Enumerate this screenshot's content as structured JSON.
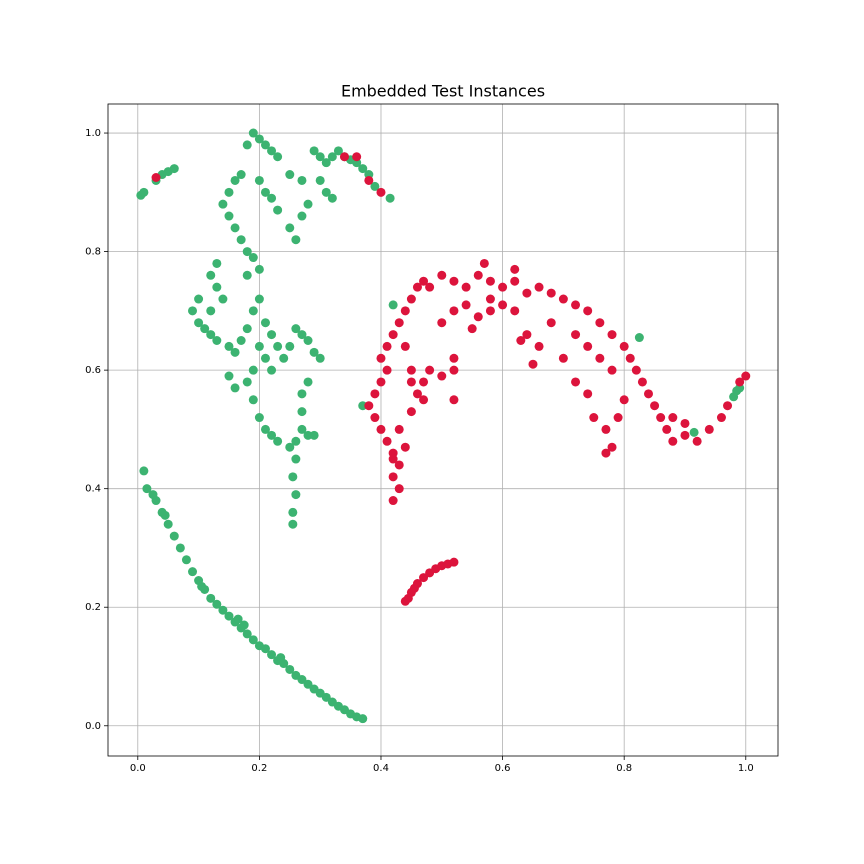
{
  "chart_data": {
    "type": "scatter",
    "title": "Embedded Test Instances",
    "grid": true,
    "xlim": [
      -0.049,
      1.053
    ],
    "ylim": [
      -0.051,
      1.049
    ],
    "xticks": [
      {
        "value": 0,
        "label": "0.0"
      },
      0.2,
      0.4,
      0.6,
      0.8,
      {
        "value": 1,
        "label": "1.0"
      }
    ],
    "yticks": [
      {
        "value": 0,
        "label": "0.0"
      },
      0.2,
      0.4,
      0.6,
      0.8,
      {
        "value": 1,
        "label": "1.0"
      }
    ],
    "series": [
      {
        "color": "#3cb371",
        "x": [
          0.01,
          0.015,
          0.03,
          0.04,
          0.05,
          0.06,
          0.07,
          0.08,
          0.09,
          0.1,
          0.11,
          0.12,
          0.13,
          0.14,
          0.15,
          0.16,
          0.17,
          0.18,
          0.19,
          0.2,
          0.21,
          0.22,
          0.23,
          0.24,
          0.25,
          0.26,
          0.27,
          0.28,
          0.29,
          0.3,
          0.31,
          0.32,
          0.33,
          0.34,
          0.35,
          0.36,
          0.37,
          0.025,
          0.045,
          0.105,
          0.165,
          0.175,
          0.235,
          0.005,
          0.01,
          0.03,
          0.04,
          0.05,
          0.06,
          0.18,
          0.19,
          0.2,
          0.21,
          0.22,
          0.23,
          0.25,
          0.27,
          0.29,
          0.3,
          0.31,
          0.32,
          0.33,
          0.34,
          0.35,
          0.36,
          0.37,
          0.38,
          0.39,
          0.415,
          0.3,
          0.31,
          0.32,
          0.28,
          0.27,
          0.25,
          0.26,
          0.23,
          0.22,
          0.21,
          0.2,
          0.17,
          0.16,
          0.15,
          0.14,
          0.15,
          0.16,
          0.17,
          0.18,
          0.19,
          0.2,
          0.18,
          0.13,
          0.12,
          0.13,
          0.14,
          0.12,
          0.1,
          0.09,
          0.1,
          0.11,
          0.12,
          0.13,
          0.15,
          0.16,
          0.17,
          0.18,
          0.19,
          0.2,
          0.21,
          0.22,
          0.2,
          0.21,
          0.22,
          0.24,
          0.25,
          0.26,
          0.27,
          0.28,
          0.29,
          0.3,
          0.23,
          0.19,
          0.18,
          0.16,
          0.15,
          0.19,
          0.2,
          0.21,
          0.22,
          0.23,
          0.25,
          0.26,
          0.27,
          0.28,
          0.29,
          0.26,
          0.255,
          0.26,
          0.255,
          0.255,
          0.27,
          0.27,
          0.28,
          0.37,
          0.42,
          0.915,
          0.98,
          0.985,
          0.99,
          0.825
        ],
        "y": [
          0.43,
          0.4,
          0.38,
          0.36,
          0.34,
          0.32,
          0.3,
          0.28,
          0.26,
          0.245,
          0.23,
          0.215,
          0.205,
          0.195,
          0.185,
          0.175,
          0.165,
          0.155,
          0.145,
          0.135,
          0.13,
          0.12,
          0.11,
          0.105,
          0.095,
          0.085,
          0.078,
          0.07,
          0.062,
          0.055,
          0.048,
          0.04,
          0.033,
          0.027,
          0.02,
          0.015,
          0.012,
          0.39,
          0.355,
          0.235,
          0.18,
          0.17,
          0.115,
          0.895,
          0.9,
          0.92,
          0.93,
          0.935,
          0.94,
          0.98,
          1.0,
          0.99,
          0.98,
          0.97,
          0.96,
          0.93,
          0.92,
          0.97,
          0.96,
          0.95,
          0.96,
          0.97,
          0.96,
          0.955,
          0.95,
          0.94,
          0.93,
          0.91,
          0.89,
          0.92,
          0.9,
          0.89,
          0.88,
          0.86,
          0.84,
          0.82,
          0.87,
          0.89,
          0.9,
          0.92,
          0.93,
          0.92,
          0.9,
          0.88,
          0.86,
          0.84,
          0.82,
          0.8,
          0.79,
          0.77,
          0.76,
          0.78,
          0.76,
          0.74,
          0.72,
          0.7,
          0.72,
          0.7,
          0.68,
          0.67,
          0.66,
          0.65,
          0.64,
          0.63,
          0.65,
          0.67,
          0.7,
          0.72,
          0.68,
          0.66,
          0.64,
          0.62,
          0.6,
          0.62,
          0.64,
          0.67,
          0.66,
          0.65,
          0.63,
          0.62,
          0.64,
          0.6,
          0.58,
          0.57,
          0.59,
          0.55,
          0.52,
          0.5,
          0.49,
          0.48,
          0.47,
          0.48,
          0.5,
          0.49,
          0.49,
          0.45,
          0.42,
          0.39,
          0.36,
          0.34,
          0.56,
          0.53,
          0.58,
          0.54,
          0.71,
          0.495,
          0.555,
          0.565,
          0.57,
          0.655
        ]
      },
      {
        "color": "#dc143c",
        "x": [
          0.44,
          0.445,
          0.45,
          0.455,
          0.46,
          0.47,
          0.48,
          0.49,
          0.5,
          0.51,
          0.52,
          0.34,
          0.36,
          0.38,
          0.4,
          0.03,
          0.42,
          0.43,
          0.42,
          0.43,
          0.42,
          0.41,
          0.4,
          0.39,
          0.38,
          0.39,
          0.4,
          0.41,
          0.4,
          0.41,
          0.42,
          0.43,
          0.44,
          0.45,
          0.46,
          0.47,
          0.48,
          0.5,
          0.52,
          0.54,
          0.56,
          0.57,
          0.58,
          0.6,
          0.62,
          0.64,
          0.66,
          0.68,
          0.7,
          0.72,
          0.74,
          0.76,
          0.78,
          0.8,
          0.81,
          0.82,
          0.83,
          0.84,
          0.85,
          0.86,
          0.87,
          0.88,
          0.9,
          0.92,
          0.94,
          0.96,
          0.97,
          0.99,
          1.0,
          0.47,
          0.48,
          0.5,
          0.52,
          0.5,
          0.52,
          0.54,
          0.56,
          0.58,
          0.6,
          0.62,
          0.64,
          0.66,
          0.65,
          0.63,
          0.44,
          0.45,
          0.46,
          0.45,
          0.43,
          0.44,
          0.42,
          0.45,
          0.47,
          0.52,
          0.52,
          0.72,
          0.7,
          0.72,
          0.74,
          0.75,
          0.77,
          0.78,
          0.77,
          0.79,
          0.8,
          0.76,
          0.78,
          0.68,
          0.74,
          0.88,
          0.9,
          0.58,
          0.55,
          0.62
        ],
        "y": [
          0.21,
          0.215,
          0.225,
          0.232,
          0.24,
          0.25,
          0.258,
          0.265,
          0.27,
          0.273,
          0.276,
          0.96,
          0.96,
          0.92,
          0.9,
          0.925,
          0.42,
          0.4,
          0.38,
          0.44,
          0.46,
          0.48,
          0.5,
          0.52,
          0.54,
          0.56,
          0.58,
          0.6,
          0.62,
          0.64,
          0.66,
          0.68,
          0.7,
          0.72,
          0.74,
          0.75,
          0.74,
          0.76,
          0.75,
          0.74,
          0.76,
          0.78,
          0.75,
          0.74,
          0.75,
          0.73,
          0.74,
          0.73,
          0.72,
          0.71,
          0.7,
          0.68,
          0.66,
          0.64,
          0.62,
          0.6,
          0.58,
          0.56,
          0.54,
          0.52,
          0.5,
          0.48,
          0.49,
          0.48,
          0.5,
          0.52,
          0.54,
          0.58,
          0.59,
          0.58,
          0.6,
          0.59,
          0.62,
          0.68,
          0.7,
          0.71,
          0.69,
          0.7,
          0.71,
          0.7,
          0.66,
          0.64,
          0.61,
          0.65,
          0.64,
          0.6,
          0.56,
          0.53,
          0.5,
          0.47,
          0.45,
          0.58,
          0.55,
          0.55,
          0.6,
          0.66,
          0.62,
          0.58,
          0.56,
          0.52,
          0.5,
          0.47,
          0.46,
          0.52,
          0.55,
          0.62,
          0.6,
          0.68,
          0.64,
          0.52,
          0.51,
          0.72,
          0.67,
          0.77
        ]
      }
    ]
  }
}
